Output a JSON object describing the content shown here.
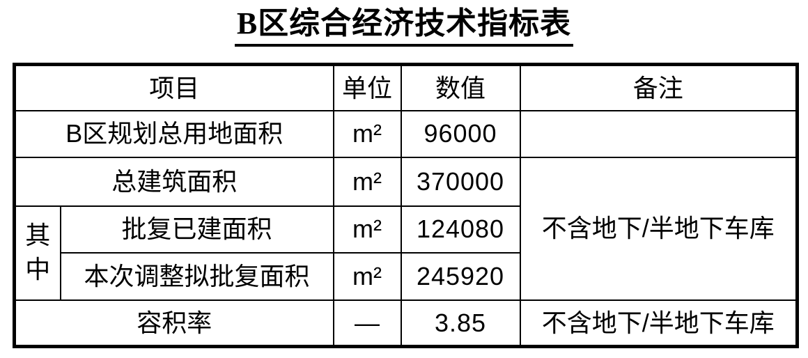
{
  "page": {
    "title": "B区综合经济技术指标表"
  },
  "table": {
    "headers": {
      "item": "项目",
      "unit": "单位",
      "value": "数值",
      "remark": "备注"
    },
    "group_label": "其中",
    "rows": [
      {
        "item": "B区规划总用地面积",
        "unit": "m²",
        "value": "96000",
        "remark": ""
      },
      {
        "item": "总建筑面积",
        "unit": "m²",
        "value": "370000"
      },
      {
        "item": "批复已建面积",
        "unit": "m²",
        "value": "124080"
      },
      {
        "item": "本次调整拟批复面积",
        "unit": "m²",
        "value": "245920"
      },
      {
        "item": "容积率",
        "unit": "—",
        "value": "3.85",
        "remark": "不含地下/半地下车库"
      }
    ],
    "merged_remark": "不含地下/半地下车库"
  },
  "colors": {
    "text": "#000000",
    "border": "#000000",
    "background": "#ffffff"
  }
}
